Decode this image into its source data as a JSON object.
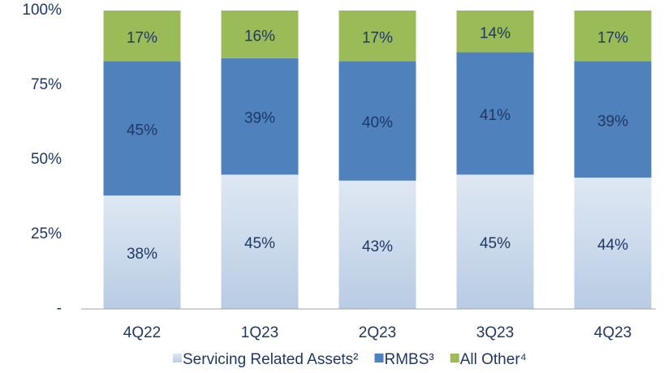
{
  "chart_data": {
    "type": "stacked-bar",
    "categories": [
      "4Q22",
      "1Q23",
      "2Q23",
      "3Q23",
      "4Q23"
    ],
    "series": [
      {
        "name": "Servicing Related Assets²",
        "color": "#b8cce4",
        "values": [
          38,
          45,
          43,
          45,
          44
        ],
        "value_labels": [
          "38%",
          "45%",
          "43%",
          "45%",
          "44%"
        ]
      },
      {
        "name": "RMBS³",
        "color": "#4f81bd",
        "values": [
          45,
          39,
          40,
          41,
          39
        ],
        "value_labels": [
          "45%",
          "39%",
          "40%",
          "41%",
          "39%"
        ]
      },
      {
        "name": "All Other⁴",
        "color": "#9bbb59",
        "values": [
          17,
          16,
          17,
          14,
          17
        ],
        "value_labels": [
          "17%",
          "16%",
          "17%",
          "14%",
          "17%"
        ]
      }
    ],
    "ylim": [
      0,
      100
    ],
    "yticks": [
      {
        "value": 0,
        "label": "-"
      },
      {
        "value": 25,
        "label": "25%"
      },
      {
        "value": 50,
        "label": "50%"
      },
      {
        "value": 75,
        "label": "75%"
      },
      {
        "value": 100,
        "label": "100%"
      }
    ],
    "legend": "bottom"
  }
}
